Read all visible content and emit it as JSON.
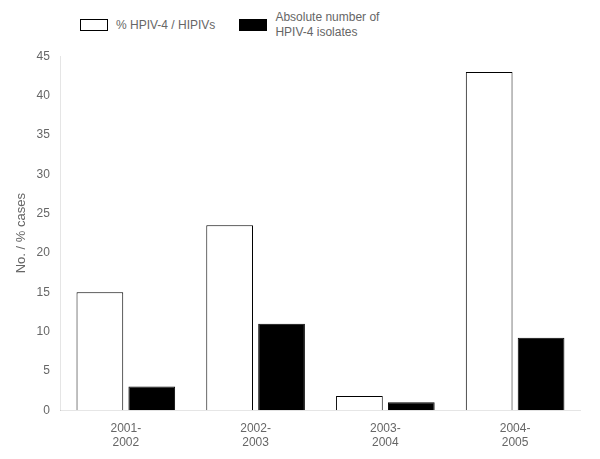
{
  "chart_data": {
    "type": "bar",
    "categories": [
      "2001-\n2002",
      "2002-\n2003",
      "2003-\n2004",
      "2004-\n2005"
    ],
    "series": [
      {
        "name": "% HPIV-4 / HIPIVs",
        "color": "#ffffff",
        "values": [
          15,
          23.5,
          1.8,
          43
        ]
      },
      {
        "name": "Absolute number of\nHPIV-4 isolates",
        "color": "#000000",
        "values": [
          3,
          11,
          1,
          9.2
        ]
      }
    ],
    "y_label": "No. / % cases",
    "ylim": [
      0,
      45
    ],
    "yticks": [
      0,
      5,
      10,
      15,
      20,
      25,
      30,
      35,
      40,
      45
    ],
    "grid": false,
    "legend": "upper left"
  }
}
